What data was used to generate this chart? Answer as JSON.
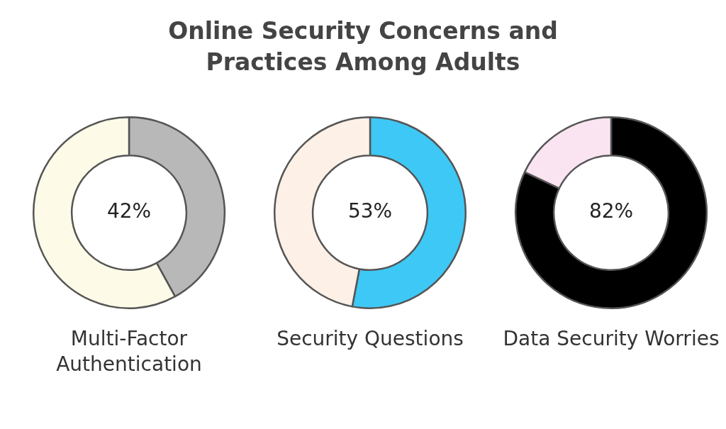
{
  "chart_data": [
    {
      "type": "donut",
      "title": "Online Security Concerns and Practices Among Adults",
      "xlabel": "Multi-Factor Authentication",
      "categories": [
        null,
        null
      ],
      "values": [
        42,
        58
      ],
      "colors": [
        "#b8b8b8",
        "#fdfbe8"
      ],
      "value_labels": [
        "42%",
        null
      ]
    },
    {
      "type": "donut",
      "xlabel": "Security Questions",
      "categories": [
        null,
        null
      ],
      "values": [
        53,
        47
      ],
      "colors": [
        "#3ec8f5",
        "#fdf0e6"
      ],
      "value_labels": [
        "53%",
        null
      ]
    },
    {
      "type": "donut",
      "xlabel": "Data Security Worries",
      "categories": [
        null,
        null
      ],
      "values": [
        82,
        18
      ],
      "colors": [
        "#000000",
        "#fbe4f2"
      ],
      "value_labels": [
        "82%",
        null
      ]
    }
  ]
}
